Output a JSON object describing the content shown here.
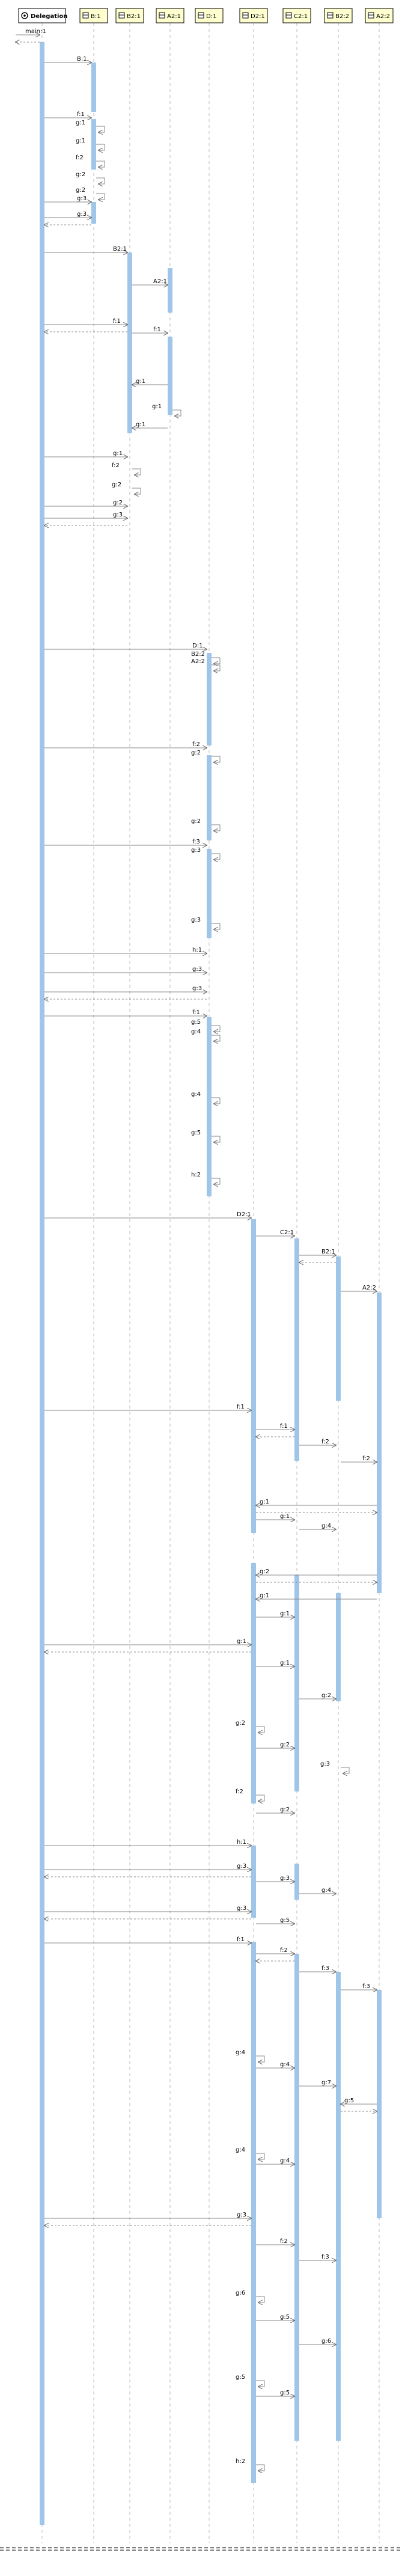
{
  "diagram": {
    "colors": {
      "accent": "#9fc5e8",
      "header_bg": "#fefece",
      "header_border": "#000000",
      "line": "#888888",
      "lifeline": "#bbbbbb"
    },
    "participants": [
      {
        "id": "delegation",
        "label": "Delegation",
        "icon": "gear-icon"
      },
      {
        "id": "b1",
        "label": "B:1",
        "icon": "class-icon"
      },
      {
        "id": "b21",
        "label": "B2:1",
        "icon": "class-icon"
      },
      {
        "id": "a21",
        "label": "A2:1",
        "icon": "class-icon"
      },
      {
        "id": "d1",
        "label": "D:1",
        "icon": "class-icon"
      },
      {
        "id": "d21",
        "label": "D2:1",
        "icon": "class-icon"
      },
      {
        "id": "c21",
        "label": "C2:1",
        "icon": "class-icon"
      },
      {
        "id": "b22",
        "label": "B2:2",
        "icon": "class-icon"
      },
      {
        "id": "a22",
        "label": "A2:2",
        "icon": "class-icon"
      }
    ],
    "messages": [
      {
        "text": "main:1",
        "from": "left",
        "to": "delegation"
      },
      {
        "text": "B:1",
        "from": "delegation",
        "to": "b1"
      },
      {
        "text": "f:1",
        "from": "delegation",
        "to": "b1"
      },
      {
        "text": "g:1",
        "from": "b1",
        "to": "b1"
      },
      {
        "text": "g:1",
        "from": "b1",
        "to": "b1"
      },
      {
        "text": "f:2",
        "from": "b1",
        "to": "b1"
      },
      {
        "text": "g:2",
        "from": "b1",
        "to": "b1"
      },
      {
        "text": "g:2",
        "from": "b1",
        "to": "b1"
      },
      {
        "text": "g:3",
        "from": "delegation",
        "to": "b1"
      },
      {
        "text": "g:3",
        "from": "delegation",
        "to": "b1"
      },
      {
        "text": "B2:1",
        "from": "delegation",
        "to": "b21"
      },
      {
        "text": "A2:1",
        "from": "b21",
        "to": "a21"
      },
      {
        "text": "f:1",
        "from": "delegation",
        "to": "b21"
      },
      {
        "text": "f:1",
        "from": "b21",
        "to": "a21"
      },
      {
        "text": "g:1",
        "from": "a21",
        "to": "b21"
      },
      {
        "text": "g:1",
        "from": "a21",
        "to": "a21"
      },
      {
        "text": "g:1",
        "from": "a21",
        "to": "b21"
      },
      {
        "text": "g:1",
        "from": "delegation",
        "to": "b21"
      },
      {
        "text": "f:2",
        "from": "b21",
        "to": "b21"
      },
      {
        "text": "g:2",
        "from": "b21",
        "to": "b21"
      },
      {
        "text": "g:2",
        "from": "delegation",
        "to": "b21"
      },
      {
        "text": "g:3",
        "from": "delegation",
        "to": "b21"
      },
      {
        "text": "D:1",
        "from": "delegation",
        "to": "d1"
      },
      {
        "text": "B2:2",
        "from": "d1",
        "to": "d1"
      },
      {
        "text": "A2:2",
        "from": "d1",
        "to": "d1"
      },
      {
        "text": "f:2",
        "from": "delegation",
        "to": "d1"
      },
      {
        "text": "g:2",
        "from": "d1",
        "to": "d1"
      },
      {
        "text": "g:2",
        "from": "d1",
        "to": "d1"
      },
      {
        "text": "f:3",
        "from": "delegation",
        "to": "d1"
      },
      {
        "text": "g:3",
        "from": "d1",
        "to": "d1"
      },
      {
        "text": "g:3",
        "from": "d1",
        "to": "d1"
      },
      {
        "text": "h:1",
        "from": "delegation",
        "to": "d1"
      },
      {
        "text": "g:3",
        "from": "delegation",
        "to": "d1"
      },
      {
        "text": "g:3",
        "from": "delegation",
        "to": "d1"
      },
      {
        "text": "f:1",
        "from": "delegation",
        "to": "d1"
      },
      {
        "text": "g:5",
        "from": "d1",
        "to": "d1"
      },
      {
        "text": "g:4",
        "from": "d1",
        "to": "d1"
      },
      {
        "text": "g:4",
        "from": "d1",
        "to": "d1"
      },
      {
        "text": "g:5",
        "from": "d1",
        "to": "d1"
      },
      {
        "text": "h:2",
        "from": "d1",
        "to": "d1"
      },
      {
        "text": "D2:1",
        "from": "delegation",
        "to": "d21"
      },
      {
        "text": "C2:1",
        "from": "d21",
        "to": "c21"
      },
      {
        "text": "B2:1",
        "from": "c21",
        "to": "b22"
      },
      {
        "text": "A2:2",
        "from": "b22",
        "to": "a22"
      },
      {
        "text": "f:1",
        "from": "delegation",
        "to": "d21"
      },
      {
        "text": "f:1",
        "from": "d21",
        "to": "c21"
      },
      {
        "text": "f:2",
        "from": "c21",
        "to": "b22"
      },
      {
        "text": "f:2",
        "from": "b22",
        "to": "a22"
      },
      {
        "text": "g:1",
        "from": "a22",
        "to": "d21"
      },
      {
        "text": "g:1",
        "from": "d21",
        "to": "c21"
      },
      {
        "text": "g:4",
        "from": "c21",
        "to": "b22"
      },
      {
        "text": "g:2",
        "from": "a22",
        "to": "d21"
      },
      {
        "text": "g:1",
        "from": "a22",
        "to": "d21"
      },
      {
        "text": "g:1",
        "from": "d21",
        "to": "c21"
      },
      {
        "text": "g:1",
        "from": "delegation",
        "to": "d21"
      },
      {
        "text": "g:1",
        "from": "d21",
        "to": "c21"
      },
      {
        "text": "g:2",
        "from": "c21",
        "to": "b22"
      },
      {
        "text": "g:2",
        "from": "d21",
        "to": "d21"
      },
      {
        "text": "g:2",
        "from": "d21",
        "to": "c21"
      },
      {
        "text": "g:3",
        "from": "b22",
        "to": "b22"
      },
      {
        "text": "f:2",
        "from": "d21",
        "to": "d21"
      },
      {
        "text": "g:2",
        "from": "d21",
        "to": "c21"
      },
      {
        "text": "h:1",
        "from": "delegation",
        "to": "d21"
      },
      {
        "text": "g:3",
        "from": "delegation",
        "to": "d21"
      },
      {
        "text": "g:3",
        "from": "d21",
        "to": "c21"
      },
      {
        "text": "g:4",
        "from": "c21",
        "to": "b22"
      },
      {
        "text": "g:3",
        "from": "delegation",
        "to": "d21"
      },
      {
        "text": "g:5",
        "from": "d21",
        "to": "c21"
      },
      {
        "text": "f:1",
        "from": "delegation",
        "to": "d21"
      },
      {
        "text": "f:2",
        "from": "d21",
        "to": "c21"
      },
      {
        "text": "f:3",
        "from": "c21",
        "to": "b22"
      },
      {
        "text": "f:3",
        "from": "b22",
        "to": "a22"
      },
      {
        "text": "g:4",
        "from": "d21",
        "to": "d21"
      },
      {
        "text": "g:4",
        "from": "d21",
        "to": "c21"
      },
      {
        "text": "g:7",
        "from": "c21",
        "to": "b22"
      },
      {
        "text": "g:5",
        "from": "a22",
        "to": "b22"
      },
      {
        "text": "g:4",
        "from": "d21",
        "to": "d21"
      },
      {
        "text": "g:4",
        "from": "d21",
        "to": "c21"
      },
      {
        "text": "g:3",
        "from": "delegation",
        "to": "d21"
      },
      {
        "text": "f:2",
        "from": "d21",
        "to": "c21"
      },
      {
        "text": "f:3",
        "from": "c21",
        "to": "b22"
      },
      {
        "text": "g:6",
        "from": "d21",
        "to": "d21"
      },
      {
        "text": "g:5",
        "from": "d21",
        "to": "c21"
      },
      {
        "text": "g:6",
        "from": "c21",
        "to": "b22"
      },
      {
        "text": "g:5",
        "from": "d21",
        "to": "d21"
      },
      {
        "text": "g:5",
        "from": "d21",
        "to": "c21"
      },
      {
        "text": "h:2",
        "from": "d21",
        "to": "d21"
      }
    ]
  }
}
